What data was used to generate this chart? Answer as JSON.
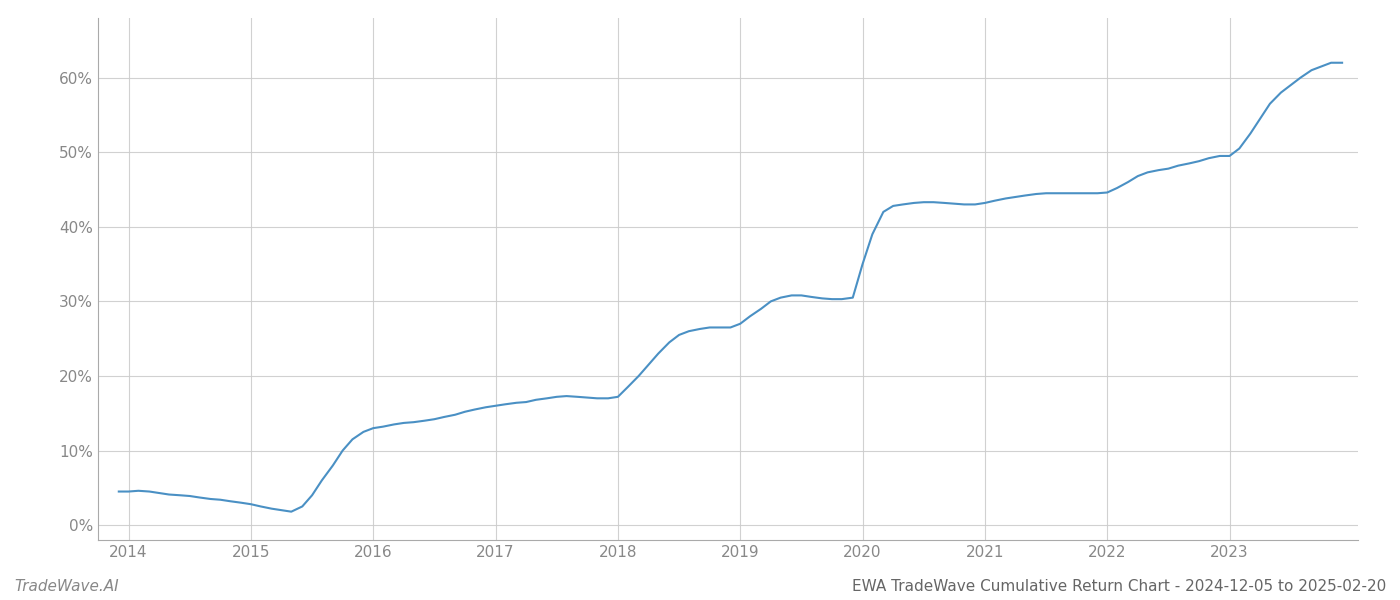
{
  "title": "EWA TradeWave Cumulative Return Chart - 2024-12-05 to 2025-02-20",
  "watermark": "TradeWave.AI",
  "line_color": "#4a90c4",
  "background_color": "#ffffff",
  "grid_color": "#cccccc",
  "x_values": [
    2013.92,
    2014.0,
    2014.08,
    2014.17,
    2014.25,
    2014.33,
    2014.42,
    2014.5,
    2014.58,
    2014.67,
    2014.75,
    2014.83,
    2014.92,
    2015.0,
    2015.08,
    2015.17,
    2015.25,
    2015.33,
    2015.42,
    2015.5,
    2015.58,
    2015.67,
    2015.75,
    2015.83,
    2015.92,
    2016.0,
    2016.08,
    2016.17,
    2016.25,
    2016.33,
    2016.42,
    2016.5,
    2016.58,
    2016.67,
    2016.75,
    2016.83,
    2016.92,
    2017.0,
    2017.08,
    2017.17,
    2017.25,
    2017.33,
    2017.42,
    2017.5,
    2017.58,
    2017.67,
    2017.75,
    2017.83,
    2017.92,
    2018.0,
    2018.08,
    2018.17,
    2018.25,
    2018.33,
    2018.42,
    2018.5,
    2018.58,
    2018.67,
    2018.75,
    2018.83,
    2018.92,
    2019.0,
    2019.08,
    2019.17,
    2019.25,
    2019.33,
    2019.42,
    2019.5,
    2019.58,
    2019.67,
    2019.75,
    2019.83,
    2019.92,
    2020.0,
    2020.08,
    2020.17,
    2020.25,
    2020.33,
    2020.42,
    2020.5,
    2020.58,
    2020.67,
    2020.75,
    2020.83,
    2020.92,
    2021.0,
    2021.08,
    2021.17,
    2021.25,
    2021.33,
    2021.42,
    2021.5,
    2021.58,
    2021.67,
    2021.75,
    2021.83,
    2021.92,
    2022.0,
    2022.08,
    2022.17,
    2022.25,
    2022.33,
    2022.42,
    2022.5,
    2022.58,
    2022.67,
    2022.75,
    2022.83,
    2022.92,
    2023.0,
    2023.08,
    2023.17,
    2023.25,
    2023.33,
    2023.42,
    2023.5,
    2023.58,
    2023.67,
    2023.75,
    2023.83,
    2023.92
  ],
  "y_values": [
    4.5,
    4.5,
    4.6,
    4.5,
    4.3,
    4.1,
    4.0,
    3.9,
    3.7,
    3.5,
    3.4,
    3.2,
    3.0,
    2.8,
    2.5,
    2.2,
    2.0,
    1.8,
    2.5,
    4.0,
    6.0,
    8.0,
    10.0,
    11.5,
    12.5,
    13.0,
    13.2,
    13.5,
    13.7,
    13.8,
    14.0,
    14.2,
    14.5,
    14.8,
    15.2,
    15.5,
    15.8,
    16.0,
    16.2,
    16.4,
    16.5,
    16.8,
    17.0,
    17.2,
    17.3,
    17.2,
    17.1,
    17.0,
    17.0,
    17.2,
    18.5,
    20.0,
    21.5,
    23.0,
    24.5,
    25.5,
    26.0,
    26.3,
    26.5,
    26.5,
    26.5,
    27.0,
    28.0,
    29.0,
    30.0,
    30.5,
    30.8,
    30.8,
    30.6,
    30.4,
    30.3,
    30.3,
    30.5,
    35.0,
    39.0,
    42.0,
    42.8,
    43.0,
    43.2,
    43.3,
    43.3,
    43.2,
    43.1,
    43.0,
    43.0,
    43.2,
    43.5,
    43.8,
    44.0,
    44.2,
    44.4,
    44.5,
    44.5,
    44.5,
    44.5,
    44.5,
    44.5,
    44.6,
    45.2,
    46.0,
    46.8,
    47.3,
    47.6,
    47.8,
    48.2,
    48.5,
    48.8,
    49.2,
    49.5,
    49.5,
    50.5,
    52.5,
    54.5,
    56.5,
    58.0,
    59.0,
    60.0,
    61.0,
    61.5,
    62.0,
    62.0
  ],
  "xlim": [
    2013.75,
    2024.05
  ],
  "ylim": [
    -2,
    68
  ],
  "xticks": [
    2014,
    2015,
    2016,
    2017,
    2018,
    2019,
    2020,
    2021,
    2022,
    2023
  ],
  "yticks": [
    0,
    10,
    20,
    30,
    40,
    50,
    60
  ],
  "ytick_labels": [
    "0%",
    "10%",
    "20%",
    "30%",
    "40%",
    "50%",
    "60%"
  ],
  "line_width": 1.5,
  "title_fontsize": 11,
  "watermark_fontsize": 11,
  "tick_fontsize": 11,
  "tick_color": "#888888",
  "spine_color": "#aaaaaa"
}
